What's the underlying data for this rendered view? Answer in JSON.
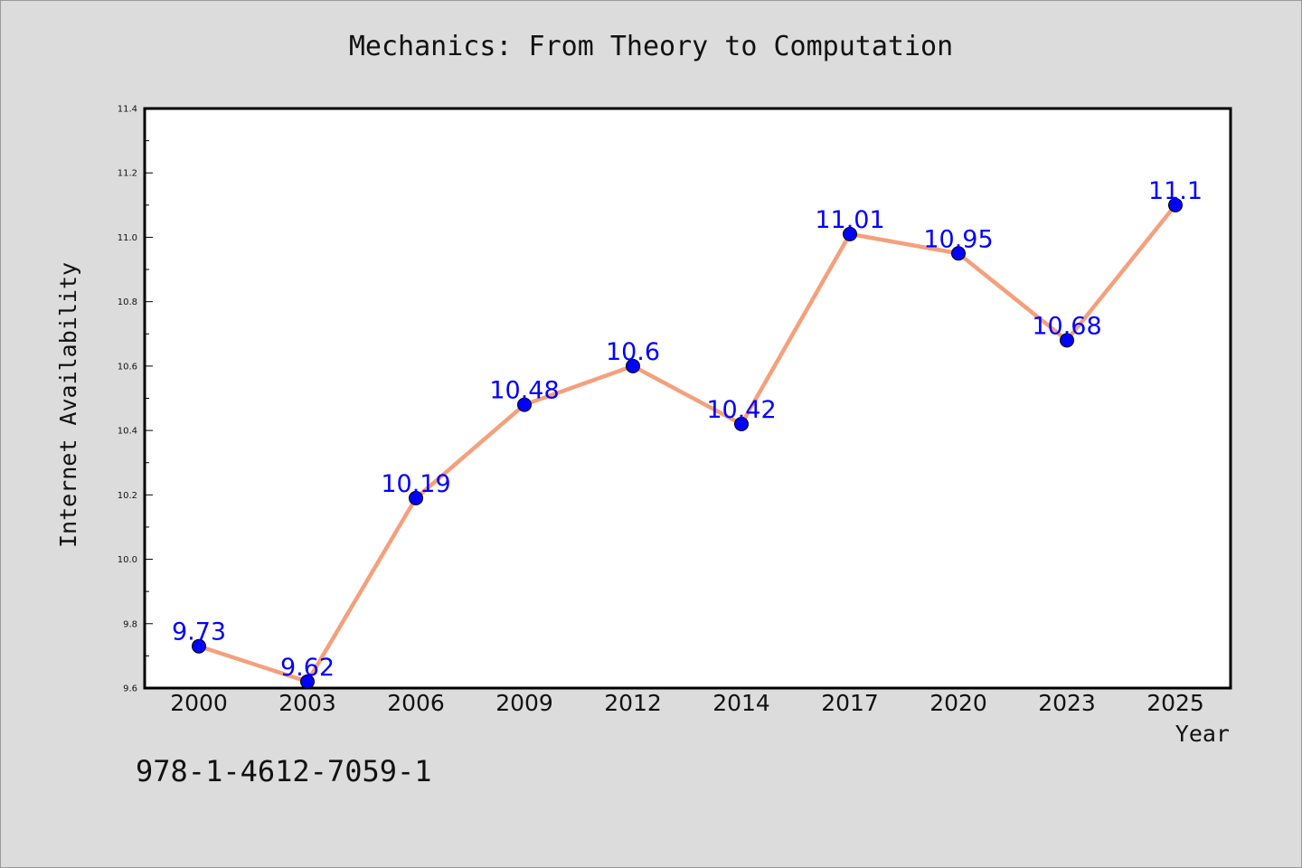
{
  "isbn": "978-1-4612-7059-1",
  "colors": {
    "background": "#dcdcdc",
    "plot_background": "#ffffff",
    "line": "#f4a07c",
    "marker": "#0000ff",
    "data_label": "#0000ff"
  },
  "chart_data": {
    "type": "line",
    "title": "Mechanics: From Theory to Computation",
    "xlabel": "Year",
    "ylabel": "Internet Availability",
    "categories": [
      "2000",
      "2003",
      "2006",
      "2009",
      "2012",
      "2014",
      "2017",
      "2020",
      "2023",
      "2025"
    ],
    "series": [
      {
        "values": [
          9.73,
          9.62,
          10.19,
          10.48,
          10.6,
          10.42,
          11.01,
          10.95,
          10.68,
          11.1
        ],
        "labels": [
          "9.73",
          "9.62",
          "10.19",
          "10.48",
          "10.6",
          "10.42",
          "11.01",
          "10.95",
          "10.68",
          "11.1"
        ]
      }
    ],
    "ylim": [
      9.6,
      11.4
    ],
    "yticks": [
      "9.6",
      "9.8",
      "10.0",
      "10.2",
      "10.4",
      "10.6",
      "10.8",
      "11.0",
      "11.2",
      "11.4"
    ],
    "grid": false,
    "legend": "none"
  }
}
